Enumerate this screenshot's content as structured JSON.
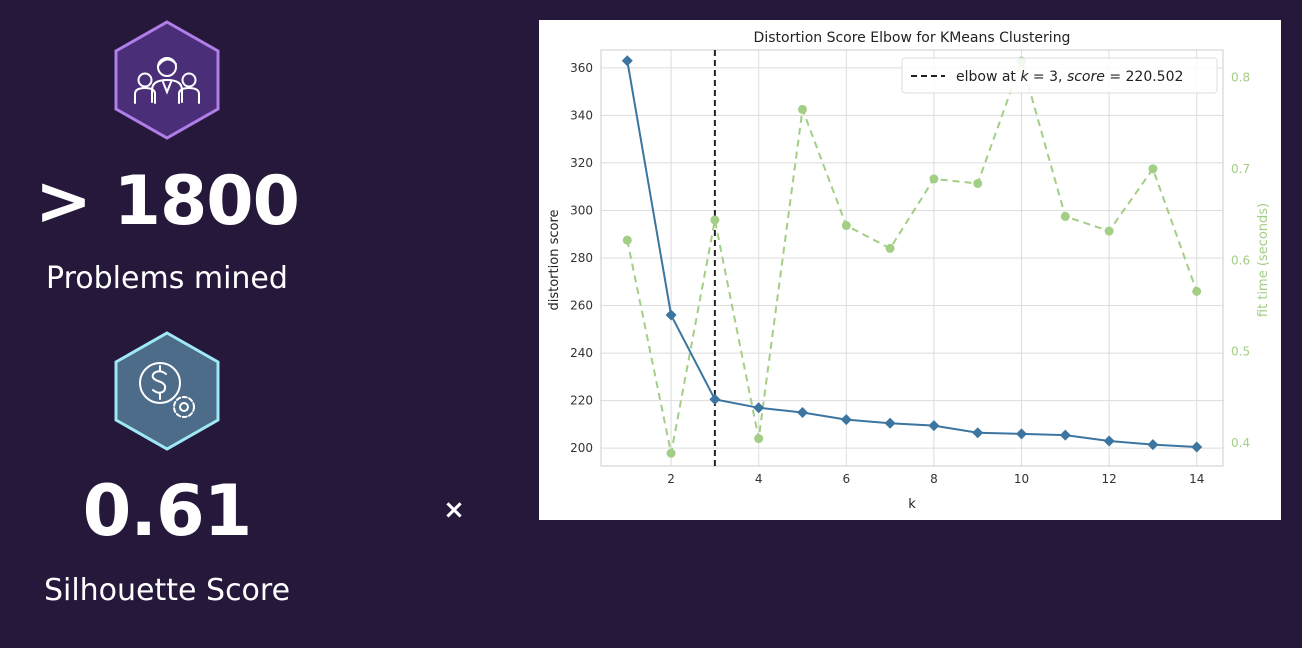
{
  "stats": [
    {
      "icon": "team-icon",
      "value": "> 1800",
      "label": "Problems mined",
      "hex_fill": "#4a2f78",
      "hex_stroke": "#b07ee8"
    },
    {
      "icon": "dollar-gear-icon",
      "value": "0.61",
      "label": "Silhouette Score",
      "hex_fill": "#4c6c8a",
      "hex_stroke": "#9fe8f5"
    }
  ],
  "close_label": "×",
  "chart_data": {
    "type": "line",
    "title": "Distortion Score Elbow for KMeans Clustering",
    "xlabel": "k",
    "ylabel": "distortion score",
    "y2label": "fit time (seconds)",
    "x": [
      1,
      2,
      3,
      4,
      5,
      6,
      7,
      8,
      9,
      10,
      11,
      12,
      13,
      14
    ],
    "xticks": [
      2,
      4,
      6,
      8,
      10,
      12,
      14
    ],
    "xlim": [
      0.4,
      14.6
    ],
    "yticks": [
      200,
      220,
      240,
      260,
      280,
      300,
      320,
      340,
      360
    ],
    "ylim": [
      192.5,
      367.5
    ],
    "y2ticks": [
      0.4,
      0.5,
      0.6,
      0.7,
      0.8
    ],
    "y2lim": [
      0.375,
      0.83
    ],
    "grid": true,
    "series": [
      {
        "values": [
          363,
          256,
          220.502,
          217,
          215,
          212,
          210.5,
          209.5,
          206.5,
          206,
          205.5,
          203,
          201.5,
          200.5
        ],
        "color": "#3b75a0",
        "axis": "left",
        "marker": "diamond",
        "dash": false
      },
      {
        "values": [
          0.622,
          0.389,
          0.644,
          0.405,
          0.765,
          0.638,
          0.613,
          0.689,
          0.684,
          0.818,
          0.648,
          0.632,
          0.7,
          0.566
        ],
        "color": "#a3ce85",
        "axis": "right",
        "marker": "circle",
        "dash": true
      }
    ],
    "elbow": {
      "k": 3,
      "score": 220.502,
      "legend_prefix": "elbow at ",
      "k_label": "k",
      "k_eq": " = 3, ",
      "score_label": "score",
      "score_eq": " = 220.502"
    },
    "legend_position": "top-right"
  }
}
